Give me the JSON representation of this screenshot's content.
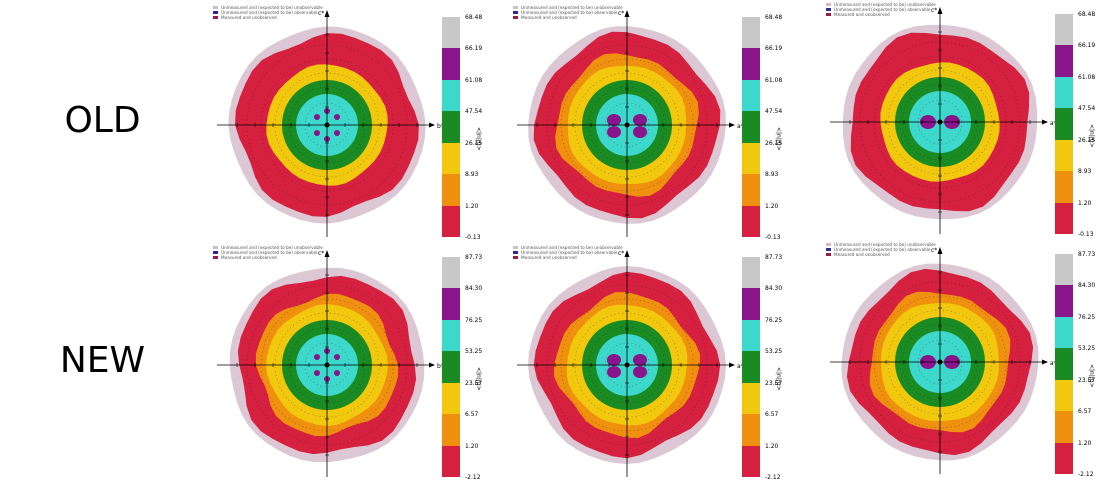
{
  "rows": [
    {
      "label": "OLD"
    },
    {
      "label": "NEW"
    }
  ],
  "axis_labels": {
    "top": "c*",
    "right_b": "b*",
    "right_a": "a*"
  },
  "colorbar_title": "<|n|/g>",
  "legend_items": [
    {
      "text": "Unmeasured and (expected to be) unobservable",
      "color": "#d8b8c8"
    },
    {
      "text": "Unmeasured and (expected to be) observable",
      "color": "#2a2aa0"
    },
    {
      "text": "Measured and unobserved",
      "color": "#9a1a4a"
    }
  ],
  "colors": {
    "red": "#d6203f",
    "orange": "#f0900f",
    "yellow": "#f2c80f",
    "green": "#1a8a22",
    "cyan": "#3dd8cc",
    "purple": "#8a148a",
    "gray": "#c8c8c8",
    "outer": "#dcc8d4"
  },
  "chart_data": [
    {
      "type": "heatmap",
      "row": "OLD",
      "col": 1,
      "right_axis": "b*",
      "colorbar_ticks": [
        "68.48",
        "66.19",
        "61.08",
        "47.54",
        "26.15",
        "8.93",
        "1.20",
        "-0.13"
      ],
      "bands": [
        "red",
        "red",
        "yellow",
        "green",
        "cyan"
      ],
      "center": "cyan-spots"
    },
    {
      "type": "heatmap",
      "row": "OLD",
      "col": 2,
      "right_axis": "a*",
      "colorbar_ticks": [
        "68.48",
        "66.19",
        "61.08",
        "47.54",
        "26.15",
        "8.93",
        "1.20",
        "-0.13"
      ],
      "bands": [
        "red",
        "orange",
        "yellow",
        "green",
        "cyan"
      ],
      "center": "purple-lobes"
    },
    {
      "type": "heatmap",
      "row": "OLD",
      "col": 3,
      "right_axis": "a*",
      "colorbar_ticks": [
        "68.48",
        "66.19",
        "61.08",
        "47.54",
        "26.15",
        "8.93",
        "1.20",
        "-0.13"
      ],
      "bands": [
        "red",
        "red",
        "yellow",
        "green",
        "cyan"
      ],
      "center": "purple-pair"
    },
    {
      "type": "heatmap",
      "row": "NEW",
      "col": 1,
      "right_axis": "b*",
      "colorbar_ticks": [
        "87.73",
        "84.30",
        "76.25",
        "53.25",
        "23.57",
        "6.57",
        "1.20",
        "-2.12"
      ],
      "bands": [
        "red",
        "orange",
        "yellow",
        "green",
        "cyan"
      ],
      "center": "cyan-spots"
    },
    {
      "type": "heatmap",
      "row": "NEW",
      "col": 2,
      "right_axis": "a*",
      "colorbar_ticks": [
        "87.73",
        "84.30",
        "76.25",
        "53.25",
        "23.57",
        "6.57",
        "1.20",
        "-2.12"
      ],
      "bands": [
        "red",
        "orange",
        "yellow",
        "green",
        "cyan"
      ],
      "center": "purple-lobes"
    },
    {
      "type": "heatmap",
      "row": "NEW",
      "col": 3,
      "right_axis": "a*",
      "colorbar_ticks": [
        "87.73",
        "84.30",
        "76.25",
        "53.25",
        "23.57",
        "6.57",
        "1.20",
        "-2.12"
      ],
      "bands": [
        "red",
        "orange",
        "yellow",
        "green",
        "cyan"
      ],
      "center": "purple-pair"
    }
  ]
}
